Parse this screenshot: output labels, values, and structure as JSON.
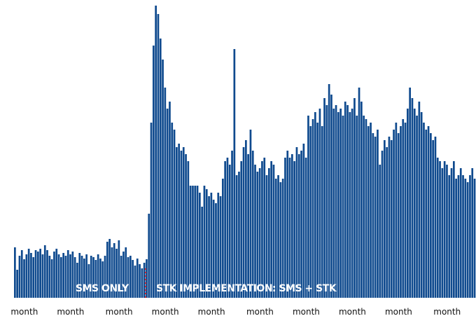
{
  "chart_data": {
    "type": "bar",
    "color": "#0f4a8e",
    "ylim": [
      0,
      420
    ],
    "annotations": [
      "SMS ONLY",
      "STK IMPLEMENTATION: SMS + STK"
    ],
    "categories": [
      null,
      null,
      null,
      null,
      "month",
      null,
      null,
      null,
      null,
      null,
      null,
      null,
      null,
      null,
      null,
      null,
      null,
      null,
      null,
      null,
      null,
      null,
      null,
      null,
      "month",
      null,
      null,
      null,
      null,
      null,
      null,
      null,
      null,
      null,
      null,
      null,
      null,
      null,
      null,
      null,
      null,
      null,
      null,
      null,
      null,
      "month",
      null,
      null,
      null,
      null,
      null,
      null,
      null,
      null,
      null,
      null,
      null,
      null,
      null,
      null,
      null,
      null,
      null,
      null,
      null,
      "month",
      null,
      null,
      null,
      null,
      null,
      null,
      null,
      null,
      null,
      null,
      null,
      null,
      null,
      null,
      null,
      null,
      null,
      null,
      null,
      "month",
      null,
      null,
      null,
      null,
      null,
      null,
      null,
      null,
      null,
      null,
      null,
      null,
      null,
      null,
      null,
      null,
      null,
      null,
      null,
      null,
      "month",
      null,
      null,
      null,
      null,
      null,
      null,
      null,
      null,
      null,
      null,
      null,
      null,
      null,
      null,
      null,
      null,
      null,
      null,
      null,
      "month",
      null,
      null,
      null,
      null,
      null,
      null,
      null,
      null,
      null,
      null,
      null,
      null,
      null,
      null,
      null,
      null,
      null,
      null,
      null,
      "month",
      null,
      null,
      null,
      null,
      null,
      null,
      null,
      null,
      null,
      null,
      null,
      null,
      null,
      null,
      null,
      null,
      null,
      null,
      null,
      "month",
      null,
      null,
      null,
      null,
      null,
      null,
      null,
      null,
      null,
      null,
      null,
      null,
      null,
      null,
      null,
      null,
      null,
      null,
      null,
      null,
      "month",
      null,
      null,
      null,
      null,
      null,
      null,
      null,
      null,
      null,
      null,
      null,
      null
    ],
    "values": [
      72,
      40,
      60,
      68,
      55,
      62,
      70,
      64,
      58,
      68,
      66,
      70,
      62,
      75,
      68,
      60,
      55,
      66,
      70,
      62,
      58,
      64,
      60,
      68,
      62,
      66,
      58,
      50,
      64,
      60,
      56,
      62,
      48,
      60,
      58,
      54,
      62,
      56,
      52,
      60,
      80,
      84,
      72,
      78,
      70,
      82,
      60,
      66,
      72,
      58,
      60,
      54,
      46,
      56,
      48,
      42,
      50,
      55,
      120,
      250,
      360,
      417,
      405,
      370,
      340,
      300,
      270,
      280,
      250,
      240,
      215,
      220,
      210,
      215,
      205,
      195,
      160,
      160,
      160,
      160,
      150,
      130,
      160,
      155,
      145,
      150,
      140,
      135,
      150,
      145,
      170,
      195,
      200,
      190,
      210,
      355,
      175,
      180,
      195,
      215,
      225,
      205,
      240,
      210,
      190,
      180,
      185,
      195,
      200,
      175,
      185,
      195,
      190,
      170,
      175,
      165,
      170,
      200,
      210,
      200,
      205,
      195,
      215,
      205,
      210,
      220,
      200,
      260,
      245,
      255,
      265,
      250,
      270,
      245,
      285,
      275,
      305,
      290,
      270,
      275,
      265,
      270,
      260,
      280,
      275,
      265,
      270,
      285,
      260,
      300,
      280,
      260,
      255,
      245,
      250,
      235,
      230,
      240,
      190,
      210,
      225,
      215,
      230,
      225,
      240,
      250,
      235,
      245,
      255,
      250,
      270,
      300,
      285,
      270,
      260,
      280,
      265,
      250,
      240,
      245,
      235,
      225,
      230,
      200,
      195,
      185,
      195,
      190,
      175,
      185,
      195,
      170,
      175,
      185,
      175,
      170,
      165,
      175,
      185,
      170
    ]
  }
}
